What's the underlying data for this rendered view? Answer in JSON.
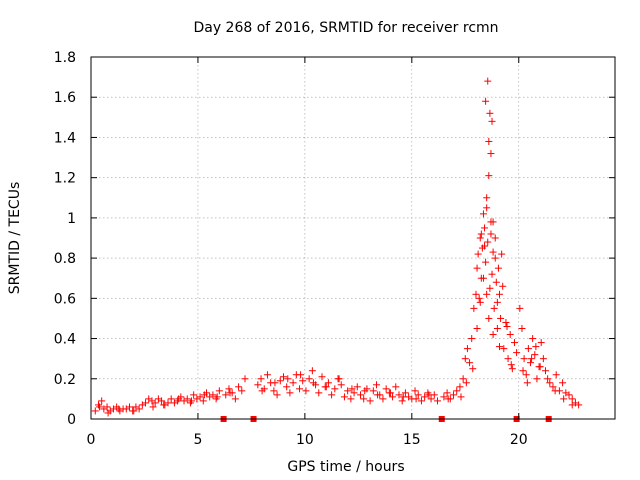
{
  "chart_data": {
    "type": "scatter",
    "title": "Day 268 of 2016, SRMTID for receiver rcmn",
    "xlabel": "GPS time / hours",
    "ylabel": "SRMTID / TECUs",
    "xlim": [
      0,
      24.5
    ],
    "ylim": [
      0,
      1.8
    ],
    "xticks": [
      0,
      5,
      10,
      15,
      20
    ],
    "yticks": [
      0,
      0.2,
      0.4,
      0.6,
      0.8,
      1,
      1.2,
      1.4,
      1.6,
      1.8
    ],
    "xtick_labels": [
      "0",
      "5",
      "10",
      "15",
      "20"
    ],
    "ytick_labels": [
      "0",
      "0.2",
      "0.4",
      "0.6",
      "0.8",
      "1",
      "1.2",
      "1.4",
      "1.6",
      "1.8"
    ],
    "grid": true,
    "marker": "plus",
    "color": "#ff0000",
    "series": [
      {
        "name": "SRMTID",
        "x": [
          0.2,
          0.35,
          0.5,
          0.6,
          0.75,
          0.9,
          1.05,
          1.2,
          1.35,
          1.5,
          1.65,
          1.8,
          1.95,
          2.1,
          2.25,
          2.4,
          2.55,
          2.7,
          2.85,
          3.0,
          3.15,
          3.3,
          3.45,
          3.6,
          3.75,
          3.9,
          4.05,
          4.2,
          4.35,
          4.5,
          4.65,
          4.8,
          4.95,
          5.1,
          5.25,
          5.4,
          5.55,
          5.7,
          5.85,
          6.0,
          6.3,
          6.45,
          6.6,
          6.75,
          6.9,
          7.05,
          7.2,
          7.8,
          7.95,
          8.1,
          8.25,
          8.4,
          8.55,
          8.7,
          8.85,
          9.0,
          9.15,
          9.3,
          9.45,
          9.6,
          9.75,
          9.9,
          10.05,
          10.2,
          10.35,
          10.5,
          10.65,
          10.8,
          10.95,
          11.1,
          11.25,
          11.4,
          11.55,
          11.7,
          11.85,
          12.0,
          12.15,
          12.3,
          12.45,
          12.6,
          12.75,
          12.9,
          13.05,
          13.2,
          13.35,
          13.5,
          13.65,
          13.8,
          13.95,
          14.1,
          14.25,
          14.4,
          14.55,
          14.7,
          14.85,
          15.0,
          15.15,
          15.3,
          15.45,
          15.6,
          15.75,
          15.9,
          16.05,
          16.2,
          16.5,
          16.65,
          16.8,
          16.95,
          17.1,
          17.25,
          17.4,
          17.5,
          17.6,
          17.7,
          17.8,
          17.9,
          18.0,
          18.05,
          18.1,
          18.15,
          18.2,
          18.25,
          18.3,
          18.35,
          18.4,
          18.45,
          18.5,
          18.55,
          18.6,
          18.65,
          18.7,
          18.75,
          18.8,
          18.85,
          18.9,
          18.95,
          19.0,
          19.05,
          19.1,
          19.15,
          19.2,
          19.3,
          19.4,
          19.5,
          19.6,
          19.7,
          19.8,
          20.05,
          20.15,
          20.25,
          20.35,
          20.45,
          20.55,
          20.65,
          20.75,
          20.85,
          20.95,
          21.05,
          21.15,
          21.25,
          21.45,
          21.6,
          21.75,
          21.9,
          22.05,
          22.2,
          22.35,
          22.5,
          22.65,
          22.8,
          0.4,
          0.8,
          1.3,
          2.0,
          2.9,
          3.4,
          4.1,
          4.7,
          5.3,
          5.9,
          6.5,
          8.0,
          8.6,
          9.2,
          9.8,
          10.4,
          11.0,
          11.6,
          12.2,
          12.8,
          13.4,
          14.0,
          14.6,
          15.2,
          15.8,
          16.7,
          17.3,
          17.55,
          17.85,
          18.05,
          18.2,
          18.35,
          18.5,
          18.6,
          18.7,
          18.8,
          18.9,
          19.0,
          19.1,
          19.25,
          19.45,
          19.65,
          19.9,
          20.2,
          20.4,
          20.6,
          20.8,
          21.0,
          21.35,
          21.7,
          22.1,
          22.5,
          18.45,
          18.55,
          18.65,
          18.75,
          18.6,
          18.7,
          18.5,
          18.8,
          18.25,
          18.4
        ],
        "y": [
          0.04,
          0.07,
          0.09,
          0.05,
          0.06,
          0.04,
          0.05,
          0.06,
          0.04,
          0.05,
          0.05,
          0.06,
          0.04,
          0.06,
          0.05,
          0.07,
          0.08,
          0.1,
          0.09,
          0.08,
          0.1,
          0.09,
          0.07,
          0.08,
          0.1,
          0.08,
          0.09,
          0.11,
          0.09,
          0.1,
          0.08,
          0.12,
          0.1,
          0.11,
          0.09,
          0.13,
          0.11,
          0.12,
          0.1,
          0.14,
          0.12,
          0.15,
          0.13,
          0.1,
          0.16,
          0.14,
          0.2,
          0.17,
          0.2,
          0.15,
          0.22,
          0.18,
          0.14,
          0.12,
          0.19,
          0.21,
          0.16,
          0.13,
          0.18,
          0.22,
          0.15,
          0.19,
          0.14,
          0.2,
          0.24,
          0.17,
          0.13,
          0.21,
          0.16,
          0.18,
          0.12,
          0.15,
          0.2,
          0.17,
          0.11,
          0.14,
          0.1,
          0.13,
          0.16,
          0.12,
          0.1,
          0.15,
          0.09,
          0.14,
          0.17,
          0.12,
          0.1,
          0.15,
          0.13,
          0.11,
          0.16,
          0.12,
          0.09,
          0.13,
          0.11,
          0.1,
          0.14,
          0.12,
          0.09,
          0.11,
          0.13,
          0.1,
          0.12,
          0.09,
          0.11,
          0.13,
          0.1,
          0.12,
          0.14,
          0.16,
          0.2,
          0.3,
          0.35,
          0.28,
          0.4,
          0.55,
          0.62,
          0.75,
          0.82,
          0.6,
          0.9,
          0.7,
          0.85,
          1.02,
          0.95,
          0.78,
          1.1,
          0.88,
          1.21,
          0.65,
          0.98,
          0.72,
          0.83,
          0.55,
          0.9,
          0.68,
          0.45,
          0.75,
          0.62,
          0.5,
          0.82,
          0.35,
          0.48,
          0.3,
          0.42,
          0.25,
          0.38,
          0.55,
          0.45,
          0.3,
          0.22,
          0.35,
          0.28,
          0.4,
          0.32,
          0.2,
          0.26,
          0.38,
          0.3,
          0.24,
          0.18,
          0.16,
          0.22,
          0.14,
          0.18,
          0.13,
          0.12,
          0.1,
          0.08,
          0.07,
          0.06,
          0.03,
          0.05,
          0.04,
          0.06,
          0.07,
          0.1,
          0.09,
          0.12,
          0.11,
          0.13,
          0.14,
          0.18,
          0.2,
          0.22,
          0.18,
          0.16,
          0.2,
          0.15,
          0.14,
          0.12,
          0.13,
          0.11,
          0.1,
          0.12,
          0.1,
          0.11,
          0.18,
          0.25,
          0.45,
          0.58,
          0.7,
          0.62,
          0.5,
          0.92,
          0.42,
          0.8,
          0.58,
          0.36,
          0.66,
          0.46,
          0.27,
          0.33,
          0.24,
          0.18,
          0.3,
          0.36,
          0.26,
          0.2,
          0.14,
          0.1,
          0.07,
          1.58,
          1.68,
          1.52,
          1.48,
          1.38,
          1.32,
          1.05,
          0.98,
          0.92,
          0.86
        ]
      }
    ],
    "gap_markers_x": [
      6.2,
      7.6,
      16.4,
      19.9,
      21.4
    ]
  }
}
